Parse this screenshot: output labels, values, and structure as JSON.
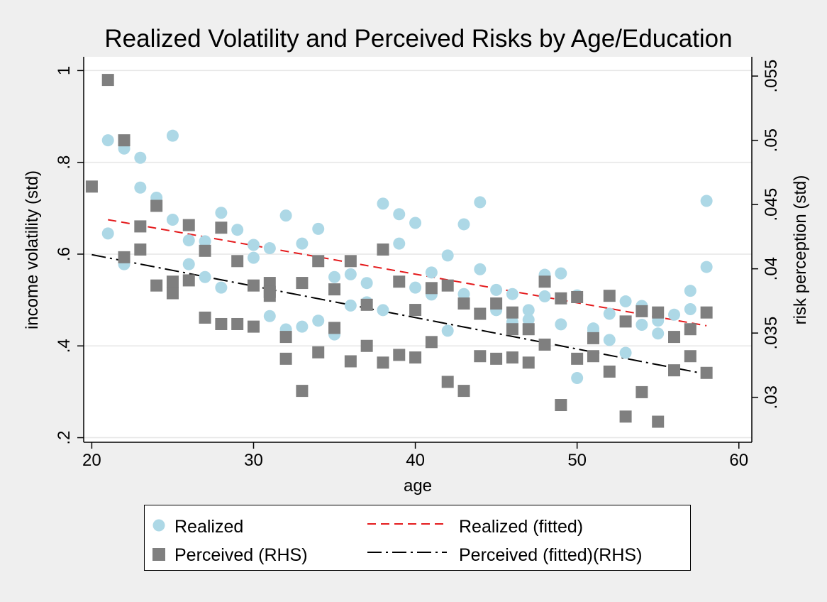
{
  "chart_data": {
    "type": "scatter",
    "title": "Realized Volatility and Perceived Risks by Age/Education",
    "xlabel": "age",
    "ylabel_left": "income volatility (std)",
    "ylabel_right": "risk perception (std)",
    "xlim": [
      19.5,
      60.8
    ],
    "ylim_left": [
      0.19,
      1.03
    ],
    "ylim_right": [
      0.0265,
      0.0565
    ],
    "x_ticks": [
      20,
      30,
      40,
      50,
      60
    ],
    "y_left_ticks": [
      0.2,
      0.4,
      0.6,
      0.8,
      1
    ],
    "y_left_tick_labels": [
      ".2",
      ".4",
      ".6",
      ".8",
      "1"
    ],
    "y_right_ticks": [
      0.03,
      0.035,
      0.04,
      0.045,
      0.05,
      0.055
    ],
    "y_right_tick_labels": [
      ".03",
      ".035",
      ".04",
      ".045",
      ".05",
      ".055"
    ],
    "grid": true,
    "legend_position": "bottom",
    "colors": {
      "realized": "#add8e6",
      "perceived": "#7f7f7f",
      "realized_fit": "#e41a1c",
      "perceived_fit": "#000000",
      "plot_bg": "#ffffff",
      "outer_bg": "#efefef",
      "grid": "#e6e6e6"
    },
    "series": [
      {
        "name": "Realized",
        "axis": "left",
        "marker": "circle",
        "points": [
          [
            21,
            0.848
          ],
          [
            21,
            0.645
          ],
          [
            22,
            0.83
          ],
          [
            22,
            0.578
          ],
          [
            23,
            0.81
          ],
          [
            23,
            0.745
          ],
          [
            24,
            0.723
          ],
          [
            25,
            0.858
          ],
          [
            25,
            0.675
          ],
          [
            26,
            0.63
          ],
          [
            26,
            0.578
          ],
          [
            27,
            0.628
          ],
          [
            27,
            0.55
          ],
          [
            28,
            0.69
          ],
          [
            28,
            0.527
          ],
          [
            29,
            0.653
          ],
          [
            30,
            0.62
          ],
          [
            30,
            0.592
          ],
          [
            31,
            0.613
          ],
          [
            31,
            0.465
          ],
          [
            32,
            0.684
          ],
          [
            32,
            0.436
          ],
          [
            33,
            0.623
          ],
          [
            33,
            0.442
          ],
          [
            34,
            0.655
          ],
          [
            34,
            0.455
          ],
          [
            35,
            0.55
          ],
          [
            35,
            0.425
          ],
          [
            36,
            0.556
          ],
          [
            36,
            0.488
          ],
          [
            37,
            0.537
          ],
          [
            37,
            0.495
          ],
          [
            38,
            0.71
          ],
          [
            38,
            0.478
          ],
          [
            39,
            0.687
          ],
          [
            39,
            0.623
          ],
          [
            40,
            0.668
          ],
          [
            40,
            0.527
          ],
          [
            41,
            0.56
          ],
          [
            41,
            0.512
          ],
          [
            42,
            0.597
          ],
          [
            42,
            0.433
          ],
          [
            43,
            0.665
          ],
          [
            43,
            0.513
          ],
          [
            44,
            0.713
          ],
          [
            44,
            0.567
          ],
          [
            45,
            0.522
          ],
          [
            45,
            0.478
          ],
          [
            46,
            0.513
          ],
          [
            46,
            0.452
          ],
          [
            47,
            0.478
          ],
          [
            47,
            0.457
          ],
          [
            48,
            0.555
          ],
          [
            48,
            0.508
          ],
          [
            49,
            0.558
          ],
          [
            49,
            0.447
          ],
          [
            50,
            0.51
          ],
          [
            50,
            0.33
          ],
          [
            51,
            0.438
          ],
          [
            51,
            0.433
          ],
          [
            52,
            0.47
          ],
          [
            52,
            0.413
          ],
          [
            53,
            0.497
          ],
          [
            53,
            0.385
          ],
          [
            54,
            0.487
          ],
          [
            54,
            0.446
          ],
          [
            55,
            0.455
          ],
          [
            55,
            0.427
          ],
          [
            56,
            0.468
          ],
          [
            57,
            0.52
          ],
          [
            57,
            0.48
          ],
          [
            58,
            0.716
          ],
          [
            58,
            0.572
          ]
        ]
      },
      {
        "name": "Perceived (RHS)",
        "axis": "right",
        "marker": "square",
        "points": [
          [
            20,
            0.0464
          ],
          [
            21,
            0.0547
          ],
          [
            22,
            0.05
          ],
          [
            22,
            0.0409
          ],
          [
            23,
            0.0433
          ],
          [
            23,
            0.0415
          ],
          [
            24,
            0.0449
          ],
          [
            24,
            0.0387
          ],
          [
            25,
            0.039
          ],
          [
            25,
            0.0381
          ],
          [
            26,
            0.0434
          ],
          [
            26,
            0.0391
          ],
          [
            27,
            0.0414
          ],
          [
            27,
            0.0362
          ],
          [
            28,
            0.0432
          ],
          [
            28,
            0.0357
          ],
          [
            29,
            0.0406
          ],
          [
            29,
            0.0357
          ],
          [
            30,
            0.0387
          ],
          [
            30,
            0.0355
          ],
          [
            31,
            0.0389
          ],
          [
            31,
            0.0382
          ],
          [
            31,
            0.0379
          ],
          [
            32,
            0.0347
          ],
          [
            32,
            0.033
          ],
          [
            33,
            0.0389
          ],
          [
            33,
            0.0305
          ],
          [
            34,
            0.0406
          ],
          [
            34,
            0.0335
          ],
          [
            35,
            0.0384
          ],
          [
            35,
            0.0354
          ],
          [
            36,
            0.0406
          ],
          [
            36,
            0.0328
          ],
          [
            37,
            0.0372
          ],
          [
            37,
            0.034
          ],
          [
            38,
            0.0415
          ],
          [
            38,
            0.0327
          ],
          [
            39,
            0.039
          ],
          [
            39,
            0.0333
          ],
          [
            40,
            0.0368
          ],
          [
            40,
            0.0331
          ],
          [
            41,
            0.0385
          ],
          [
            41,
            0.0343
          ],
          [
            42,
            0.0387
          ],
          [
            42,
            0.0312
          ],
          [
            43,
            0.0373
          ],
          [
            43,
            0.0305
          ],
          [
            44,
            0.0365
          ],
          [
            44,
            0.0332
          ],
          [
            45,
            0.0373
          ],
          [
            45,
            0.033
          ],
          [
            46,
            0.0366
          ],
          [
            46,
            0.0353
          ],
          [
            46,
            0.0331
          ],
          [
            47,
            0.0353
          ],
          [
            47,
            0.0327
          ],
          [
            48,
            0.039
          ],
          [
            48,
            0.0341
          ],
          [
            49,
            0.0377
          ],
          [
            49,
            0.0294
          ],
          [
            50,
            0.0378
          ],
          [
            50,
            0.033
          ],
          [
            51,
            0.0346
          ],
          [
            51,
            0.0332
          ],
          [
            52,
            0.0379
          ],
          [
            52,
            0.032
          ],
          [
            53,
            0.0359
          ],
          [
            53,
            0.0285
          ],
          [
            54,
            0.0367
          ],
          [
            54,
            0.0304
          ],
          [
            55,
            0.0366
          ],
          [
            55,
            0.0281
          ],
          [
            56,
            0.0347
          ],
          [
            56,
            0.0321
          ],
          [
            57,
            0.0353
          ],
          [
            57,
            0.0332
          ],
          [
            58,
            0.0366
          ],
          [
            58,
            0.0319
          ]
        ]
      },
      {
        "name": "Realized (fitted)",
        "axis": "left",
        "line": "dash",
        "points": [
          [
            21,
            0.675
          ],
          [
            58,
            0.444
          ]
        ]
      },
      {
        "name": "Perceived (fitted)(RHS)",
        "axis": "right",
        "line": "dashdot",
        "points": [
          [
            20,
            0.0411
          ],
          [
            58,
            0.0318
          ]
        ]
      }
    ]
  }
}
